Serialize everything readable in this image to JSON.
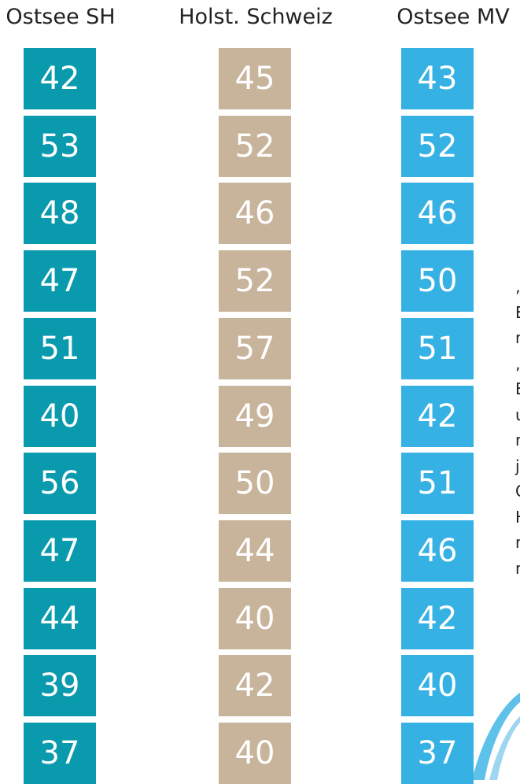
{
  "columns": [
    {
      "header": "Ostsee SH",
      "color": "#0a9aae",
      "values": [
        42,
        53,
        48,
        47,
        51,
        40,
        56,
        47,
        44,
        39,
        37
      ]
    },
    {
      "header": "Holst. Schweiz",
      "color": "#c8b39b",
      "values": [
        45,
        52,
        46,
        52,
        57,
        49,
        50,
        44,
        40,
        42,
        40
      ]
    },
    {
      "header": "Ostsee MV",
      "color": "#36b1e4",
      "values": [
        43,
        52,
        46,
        50,
        51,
        42,
        51,
        46,
        42,
        40,
        37
      ]
    }
  ],
  "side_text": [
    "„",
    "E",
    "n",
    "„",
    "E",
    "u",
    "n",
    "j",
    "C",
    "H",
    "n",
    "n"
  ]
}
